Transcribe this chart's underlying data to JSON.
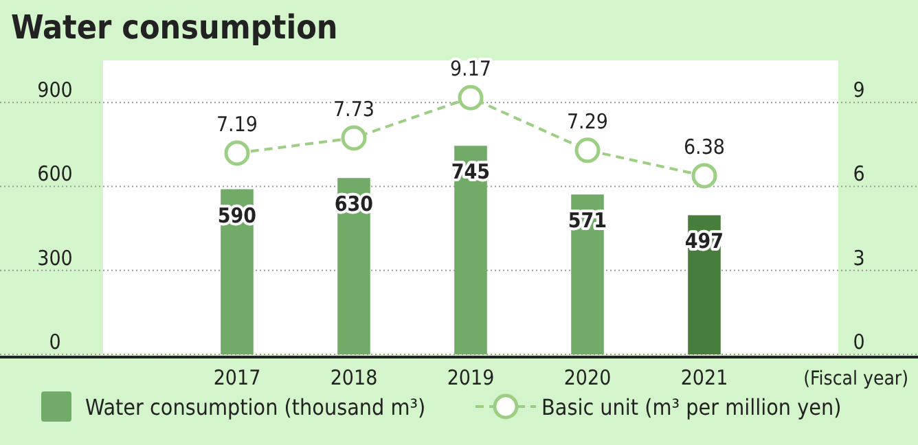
{
  "chart_data": {
    "type": "bar",
    "title": "Water consumption",
    "xlabel": "(Fiscal year)",
    "categories": [
      "2017",
      "2018",
      "2019",
      "2020",
      "2021"
    ],
    "series": [
      {
        "name": "Water consumption (thousand m³)",
        "color": "#72ab68",
        "colors": [
          "#72ab68",
          "#72ab68",
          "#72ab68",
          "#72ab68",
          "#487e3c"
        ],
        "values": [
          590,
          630,
          745,
          571,
          497
        ]
      },
      {
        "name": "Basic unit (m³ per million yen)",
        "type": "line",
        "axis": "y2",
        "color": "#9ccf84",
        "values": [
          7.19,
          7.73,
          9.17,
          7.29,
          6.38
        ],
        "marker": "circle",
        "line_style": "dashed"
      }
    ],
    "ylim": [
      0,
      1050
    ],
    "yticks": [
      0,
      300,
      600,
      900
    ],
    "y2lim": [
      0,
      10.5
    ],
    "y2ticks": [
      0,
      3,
      6,
      9
    ],
    "grid": "y",
    "legend": "bottom",
    "data_labels": true
  }
}
